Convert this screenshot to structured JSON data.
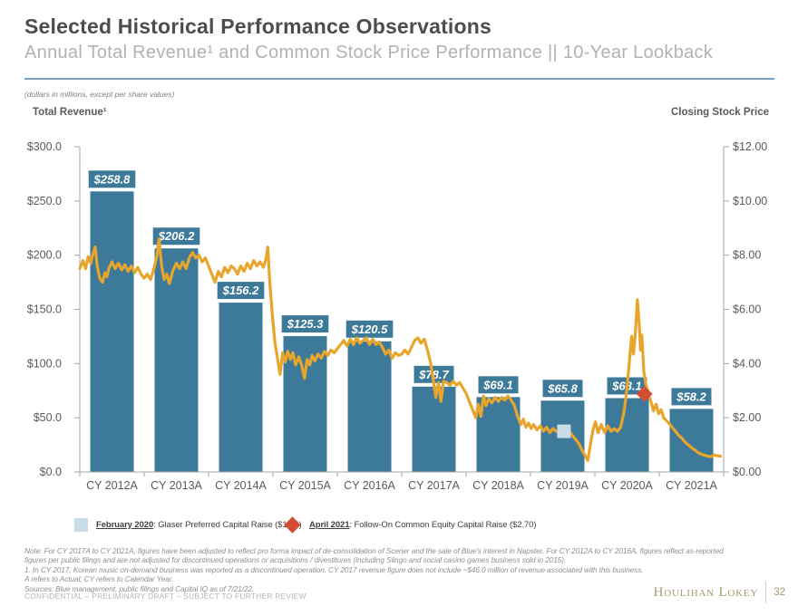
{
  "slide": {
    "title": "Selected Historical Performance Observations",
    "subtitle": "Annual Total Revenue¹ and Common Stock Price Performance || 10-Year Lookback",
    "units_note": "(dollars in millions, except per share values)",
    "left_axis_title": "Total Revenue¹",
    "right_axis_title": "Closing Stock Price"
  },
  "chart_data": {
    "type": "combo (bar + line)",
    "categories": [
      "CY 2012A",
      "CY 2013A",
      "CY 2014A",
      "CY 2015A",
      "CY 2016A",
      "CY 2017A",
      "CY 2018A",
      "CY 2019A",
      "CY 2020A",
      "CY 2021A"
    ],
    "bar_series": {
      "name": "Total Revenue ($ millions)",
      "values": [
        258.8,
        206.2,
        156.2,
        125.3,
        120.5,
        78.7,
        69.1,
        65.8,
        68.1,
        58.2
      ],
      "labels": [
        "$258.8",
        "$206.2",
        "$156.2",
        "$125.3",
        "$120.5",
        "$78.7",
        "$69.1",
        "$65.8",
        "$68.1",
        "$58.2"
      ],
      "color": "#3D7A99"
    },
    "left_axis": {
      "min": 0,
      "max": 300,
      "step": 50,
      "tick_labels": [
        "$0.0",
        "$50.0",
        "$100.0",
        "$150.0",
        "$200.0",
        "$250.0",
        "$300.0"
      ]
    },
    "right_axis": {
      "min": 0,
      "max": 12,
      "step": 2,
      "tick_labels": [
        "$0.00",
        "$2.00",
        "$4.00",
        "$6.00",
        "$8.00",
        "$10.00",
        "$12.00"
      ]
    },
    "line_series": {
      "name": "Closing Stock Price ($)",
      "color": "#E8A52B",
      "t_range": [
        2012.55,
        2022.55
      ],
      "points": [
        [
          2012.55,
          7.5
        ],
        [
          2012.6,
          7.8
        ],
        [
          2012.64,
          7.5
        ],
        [
          2012.68,
          7.95
        ],
        [
          2012.72,
          7.7
        ],
        [
          2012.76,
          8.1
        ],
        [
          2012.79,
          8.3
        ],
        [
          2012.82,
          7.6
        ],
        [
          2012.86,
          7.15
        ],
        [
          2012.9,
          7.0
        ],
        [
          2012.94,
          7.35
        ],
        [
          2012.97,
          7.2
        ],
        [
          2013.0,
          7.5
        ],
        [
          2013.05,
          7.75
        ],
        [
          2013.1,
          7.5
        ],
        [
          2013.15,
          7.7
        ],
        [
          2013.2,
          7.45
        ],
        [
          2013.25,
          7.65
        ],
        [
          2013.3,
          7.4
        ],
        [
          2013.35,
          7.6
        ],
        [
          2013.4,
          7.35
        ],
        [
          2013.45,
          7.55
        ],
        [
          2013.5,
          7.3
        ],
        [
          2013.55,
          7.15
        ],
        [
          2013.6,
          7.3
        ],
        [
          2013.65,
          7.1
        ],
        [
          2013.7,
          7.5
        ],
        [
          2013.75,
          8.0
        ],
        [
          2013.78,
          8.6
        ],
        [
          2013.82,
          7.6
        ],
        [
          2013.86,
          7.1
        ],
        [
          2013.9,
          7.3
        ],
        [
          2013.94,
          6.95
        ],
        [
          2013.97,
          7.2
        ],
        [
          2014.0,
          7.45
        ],
        [
          2014.05,
          7.7
        ],
        [
          2014.1,
          7.5
        ],
        [
          2014.15,
          7.75
        ],
        [
          2014.2,
          7.5
        ],
        [
          2014.25,
          7.9
        ],
        [
          2014.3,
          8.1
        ],
        [
          2014.35,
          7.9
        ],
        [
          2014.4,
          8.0
        ],
        [
          2014.45,
          7.75
        ],
        [
          2014.5,
          7.9
        ],
        [
          2014.55,
          7.6
        ],
        [
          2014.6,
          7.3
        ],
        [
          2014.65,
          7.0
        ],
        [
          2014.7,
          7.4
        ],
        [
          2014.75,
          7.2
        ],
        [
          2014.8,
          7.55
        ],
        [
          2014.85,
          7.35
        ],
        [
          2014.9,
          7.6
        ],
        [
          2014.95,
          7.5
        ],
        [
          2015.0,
          7.3
        ],
        [
          2015.05,
          7.6
        ],
        [
          2015.1,
          7.4
        ],
        [
          2015.15,
          7.7
        ],
        [
          2015.2,
          7.5
        ],
        [
          2015.25,
          7.8
        ],
        [
          2015.3,
          7.6
        ],
        [
          2015.35,
          7.75
        ],
        [
          2015.4,
          7.55
        ],
        [
          2015.44,
          7.85
        ],
        [
          2015.47,
          8.3
        ],
        [
          2015.5,
          7.0
        ],
        [
          2015.54,
          5.8
        ],
        [
          2015.58,
          4.8
        ],
        [
          2015.62,
          4.2
        ],
        [
          2015.66,
          3.6
        ],
        [
          2015.7,
          4.4
        ],
        [
          2015.74,
          4.05
        ],
        [
          2015.78,
          4.45
        ],
        [
          2015.82,
          4.15
        ],
        [
          2015.86,
          4.4
        ],
        [
          2015.9,
          3.95
        ],
        [
          2015.95,
          4.25
        ],
        [
          2016.0,
          3.9
        ],
        [
          2016.04,
          3.45
        ],
        [
          2016.08,
          4.15
        ],
        [
          2016.12,
          3.95
        ],
        [
          2016.16,
          4.3
        ],
        [
          2016.2,
          4.1
        ],
        [
          2016.25,
          4.35
        ],
        [
          2016.3,
          4.2
        ],
        [
          2016.35,
          4.45
        ],
        [
          2016.4,
          4.3
        ],
        [
          2016.45,
          4.5
        ],
        [
          2016.5,
          4.4
        ],
        [
          2016.55,
          4.55
        ],
        [
          2016.6,
          4.7
        ],
        [
          2016.65,
          4.85
        ],
        [
          2016.7,
          4.65
        ],
        [
          2016.75,
          4.9
        ],
        [
          2016.8,
          4.7
        ],
        [
          2016.85,
          4.95
        ],
        [
          2016.9,
          4.75
        ],
        [
          2016.95,
          4.85
        ],
        [
          2017.0,
          4.95
        ],
        [
          2017.05,
          4.7
        ],
        [
          2017.1,
          4.9
        ],
        [
          2017.15,
          4.7
        ],
        [
          2017.2,
          4.8
        ],
        [
          2017.25,
          4.6
        ],
        [
          2017.3,
          4.35
        ],
        [
          2017.35,
          4.5
        ],
        [
          2017.4,
          4.2
        ],
        [
          2017.45,
          4.4
        ],
        [
          2017.5,
          4.3
        ],
        [
          2017.55,
          4.35
        ],
        [
          2017.6,
          4.5
        ],
        [
          2017.65,
          4.35
        ],
        [
          2017.7,
          4.6
        ],
        [
          2017.75,
          4.85
        ],
        [
          2017.8,
          4.95
        ],
        [
          2017.85,
          4.75
        ],
        [
          2017.9,
          4.9
        ],
        [
          2017.95,
          4.5
        ],
        [
          2018.0,
          4.0
        ],
        [
          2018.04,
          3.4
        ],
        [
          2018.08,
          2.75
        ],
        [
          2018.12,
          3.3
        ],
        [
          2018.16,
          2.6
        ],
        [
          2018.2,
          3.35
        ],
        [
          2018.25,
          3.3
        ],
        [
          2018.3,
          3.2
        ],
        [
          2018.35,
          3.35
        ],
        [
          2018.4,
          3.2
        ],
        [
          2018.45,
          3.3
        ],
        [
          2018.5,
          3.1
        ],
        [
          2018.55,
          2.9
        ],
        [
          2018.6,
          2.6
        ],
        [
          2018.65,
          2.3
        ],
        [
          2018.7,
          2.0
        ],
        [
          2018.74,
          2.5
        ],
        [
          2018.78,
          2.05
        ],
        [
          2018.82,
          2.8
        ],
        [
          2018.86,
          2.45
        ],
        [
          2018.9,
          2.7
        ],
        [
          2018.95,
          2.55
        ],
        [
          2019.0,
          2.75
        ],
        [
          2019.05,
          2.6
        ],
        [
          2019.1,
          2.75
        ],
        [
          2019.15,
          2.65
        ],
        [
          2019.2,
          2.8
        ],
        [
          2019.25,
          2.65
        ],
        [
          2019.3,
          2.45
        ],
        [
          2019.35,
          2.05
        ],
        [
          2019.4,
          1.75
        ],
        [
          2019.44,
          1.95
        ],
        [
          2019.48,
          1.65
        ],
        [
          2019.52,
          1.8
        ],
        [
          2019.56,
          1.6
        ],
        [
          2019.6,
          1.75
        ],
        [
          2019.65,
          1.55
        ],
        [
          2019.7,
          1.7
        ],
        [
          2019.75,
          1.5
        ],
        [
          2019.8,
          1.65
        ],
        [
          2019.85,
          1.45
        ],
        [
          2019.9,
          1.6
        ],
        [
          2019.95,
          1.5
        ],
        [
          2020.0,
          1.45
        ],
        [
          2020.05,
          1.55
        ],
        [
          2020.1,
          1.35
        ],
        [
          2020.15,
          1.5
        ],
        [
          2020.2,
          1.35
        ],
        [
          2020.25,
          1.2
        ],
        [
          2020.3,
          1.05
        ],
        [
          2020.35,
          0.8
        ],
        [
          2020.4,
          0.6
        ],
        [
          2020.44,
          0.42
        ],
        [
          2020.48,
          1.0
        ],
        [
          2020.52,
          1.55
        ],
        [
          2020.56,
          1.85
        ],
        [
          2020.6,
          1.45
        ],
        [
          2020.65,
          1.75
        ],
        [
          2020.7,
          1.45
        ],
        [
          2020.75,
          1.7
        ],
        [
          2020.8,
          1.5
        ],
        [
          2020.85,
          1.6
        ],
        [
          2020.9,
          1.5
        ],
        [
          2020.95,
          1.65
        ],
        [
          2021.0,
          2.2
        ],
        [
          2021.04,
          2.9
        ],
        [
          2021.08,
          3.9
        ],
        [
          2021.12,
          5.0
        ],
        [
          2021.15,
          4.35
        ],
        [
          2021.18,
          5.15
        ],
        [
          2021.21,
          6.35
        ],
        [
          2021.24,
          5.4
        ],
        [
          2021.26,
          4.5
        ],
        [
          2021.28,
          5.05
        ],
        [
          2021.31,
          3.7
        ],
        [
          2021.34,
          3.25
        ],
        [
          2021.38,
          2.9
        ],
        [
          2021.42,
          2.6
        ],
        [
          2021.46,
          2.25
        ],
        [
          2021.5,
          2.5
        ],
        [
          2021.54,
          2.15
        ],
        [
          2021.58,
          2.3
        ],
        [
          2021.62,
          2.0
        ],
        [
          2021.66,
          1.9
        ],
        [
          2021.7,
          1.8
        ],
        [
          2021.75,
          1.65
        ],
        [
          2021.8,
          1.5
        ],
        [
          2021.85,
          1.35
        ],
        [
          2021.9,
          1.25
        ],
        [
          2021.95,
          1.1
        ],
        [
          2022.0,
          1.0
        ],
        [
          2022.05,
          0.9
        ],
        [
          2022.1,
          0.82
        ],
        [
          2022.15,
          0.72
        ],
        [
          2022.2,
          0.66
        ],
        [
          2022.25,
          0.62
        ],
        [
          2022.3,
          0.58
        ],
        [
          2022.35,
          0.56
        ],
        [
          2022.4,
          0.63
        ],
        [
          2022.45,
          0.6
        ],
        [
          2022.5,
          0.58
        ]
      ]
    },
    "events": [
      {
        "id": "feb-2020",
        "shape": "square",
        "t": 2020.07,
        "price": 1.5,
        "color": "#C8DBE9",
        "legend_label": "February 2020",
        "legend_text": ": Glaser Preferred Capital Raise ($1.24)"
      },
      {
        "id": "apr-2021",
        "shape": "diamond",
        "t": 2021.32,
        "price": 2.88,
        "color": "#D14E35",
        "legend_label": "April 2021",
        "legend_text": ": Follow-On Common Equity Capital Raise ($2.70)"
      }
    ],
    "legend_position": "bottom",
    "grid": false
  },
  "footnotes": [
    "Note: For CY 2017A to CY 2021A, figures have been adjusted to reflect pro forma impact of de-consolidation of Scener and the sale of Blue's interest in Napster. For CY 2012A to CY 2016A, figures reflect as-reported",
    "figures per public filings and are not adjusted for discontinued operations or acquisitions / divestitures (including Slingo and social casino games business sold in 2015).",
    "1. In CY 2017, Korean music on-demand business was reported as a discontinued operation. CY 2017 revenue figure does not include ~$46.0 million of revenue associated with this business.",
    "A refers to Actual; CY refers to Calendar Year.",
    "Sources: Blue management, public filings and Capital IQ as of 7/21/22."
  ],
  "footer": {
    "confidential": "CONFIDENTIAL – PRELIMINARY DRAFT – SUBJECT TO FURTHER REVIEW",
    "brand": "Houlihan Lokey",
    "page": "32"
  }
}
